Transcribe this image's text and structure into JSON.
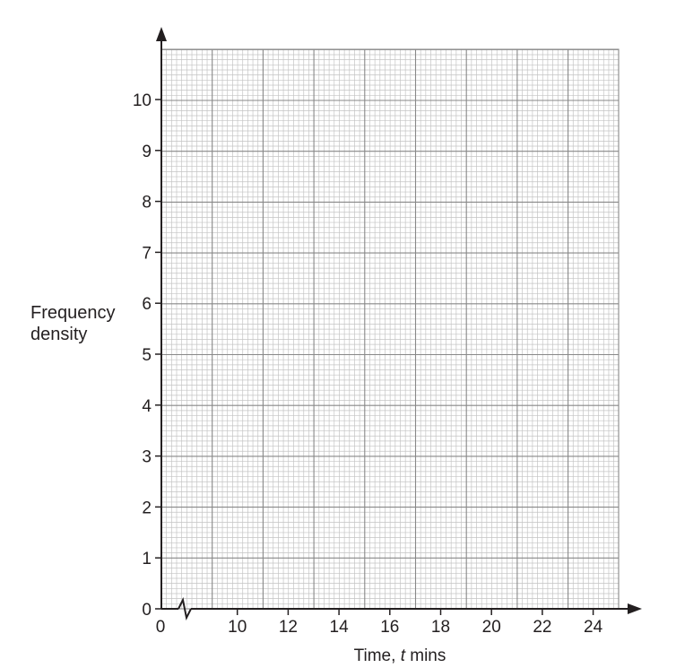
{
  "chart_data": {
    "type": "histogram",
    "title": "",
    "xlabel": "Time, t mins",
    "xlabel_parts": {
      "before": "Time, ",
      "italic": "t",
      "after": " mins"
    },
    "ylabel_lines": [
      "Frequency",
      "density"
    ],
    "x_origin_label": "0",
    "x_axis_break": true,
    "x_ticks": [
      10,
      12,
      14,
      16,
      18,
      20,
      22,
      24
    ],
    "y_ticks": [
      0,
      1,
      2,
      3,
      4,
      5,
      6,
      7,
      8,
      9,
      10
    ],
    "xlim": [
      8,
      26
    ],
    "ylim": [
      0,
      11
    ],
    "grid": true,
    "minor_grid_per_unit_x": 5,
    "minor_grid_per_unit_y": 10,
    "series": []
  },
  "colors": {
    "axis": "#231f20",
    "grid_major": "#888888",
    "grid_minor": "#c4c4c4",
    "text": "#231f20"
  }
}
